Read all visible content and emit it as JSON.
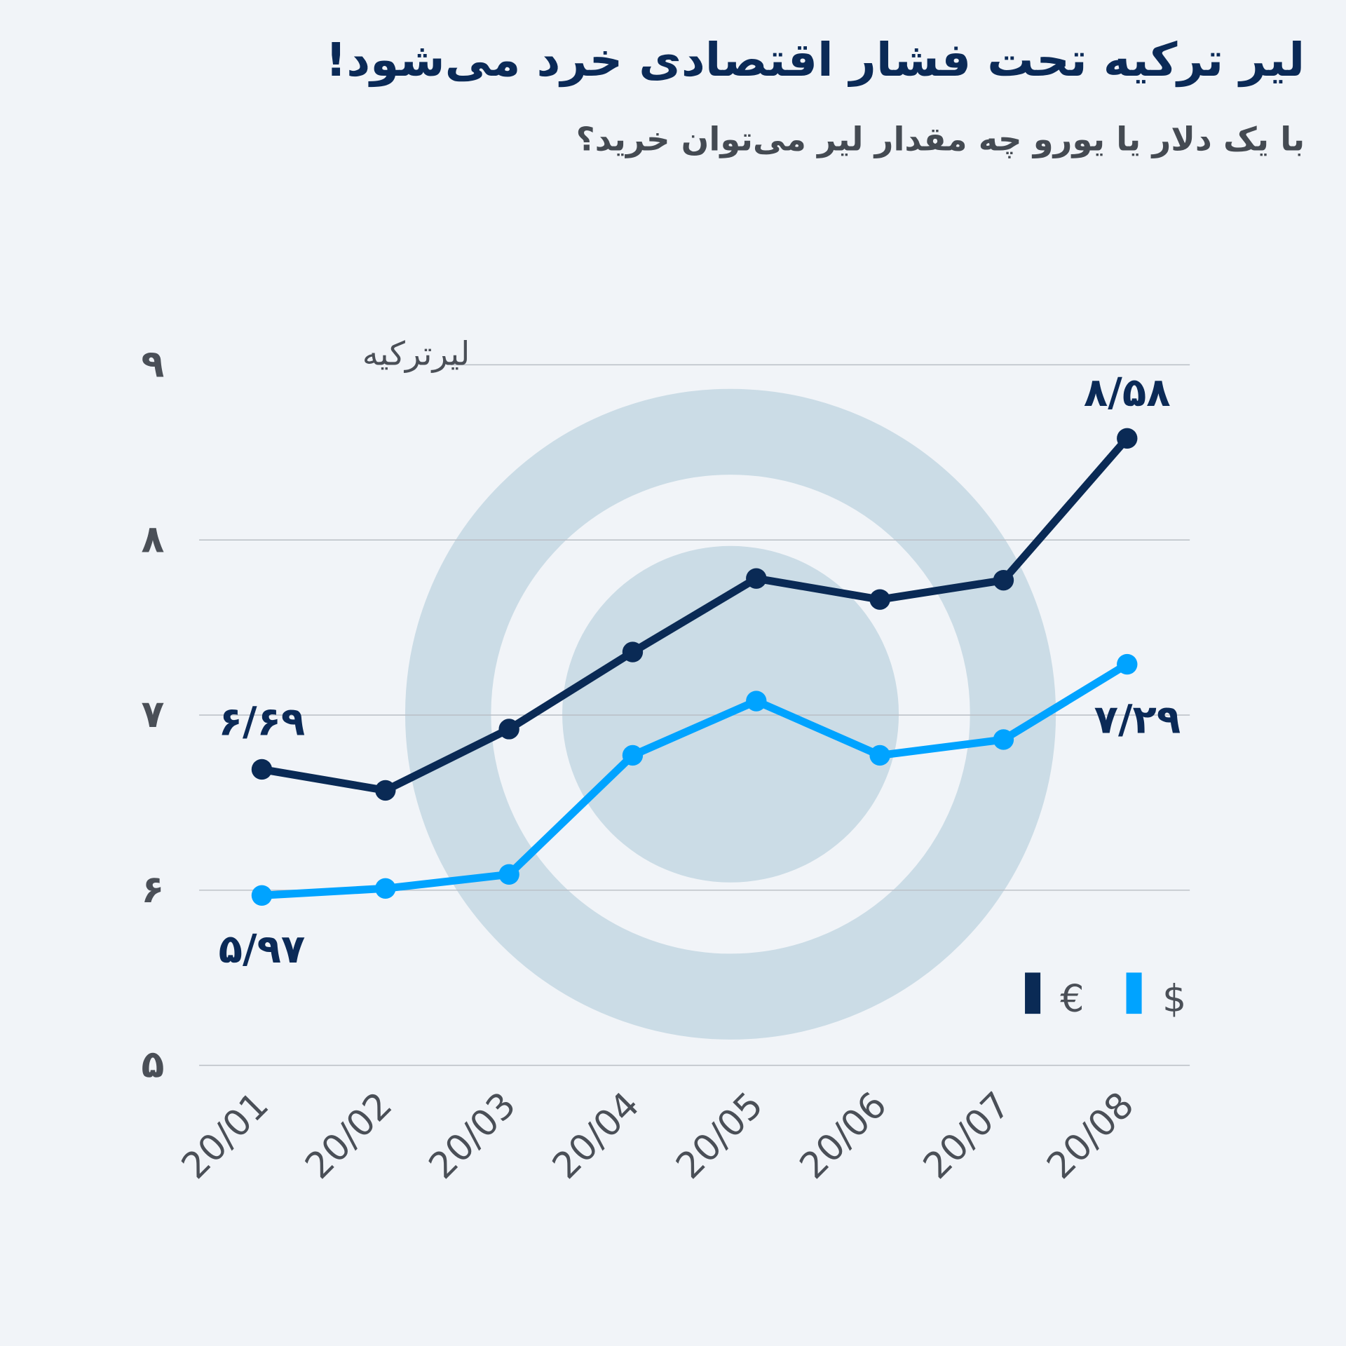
{
  "title": "لیر ترکیه تحت فشار اقتصادی خرد می‌شود!",
  "subtitle": "با یک دلار یا یورو چه مقدار لیر می‌توان خرید؟",
  "colors": {
    "euro": "#0a2a55",
    "dollar": "#00a3ff",
    "grid": "#b9bec5",
    "watermark": "#cbdce6"
  },
  "chart_data": {
    "type": "line",
    "title": "لیر ترکیه تحت فشار اقتصادی خرد می‌شود!",
    "ylabel": "لیرترکیه",
    "xlabel": "",
    "categories": [
      "20/01",
      "20/02",
      "20/03",
      "20/04",
      "20/05",
      "20/06",
      "20/07",
      "20/08"
    ],
    "ylim": [
      5,
      9
    ],
    "yticks": [
      5,
      6,
      7,
      8,
      9
    ],
    "ytick_labels": [
      "۵",
      "۶",
      "۷",
      "۸",
      "۹"
    ],
    "grid": true,
    "legend_position": "bottom-right",
    "series": [
      {
        "name": "€",
        "values": [
          6.69,
          6.57,
          6.92,
          7.36,
          7.78,
          7.66,
          7.77,
          8.58
        ]
      },
      {
        "name": "$",
        "values": [
          5.97,
          6.01,
          6.09,
          6.77,
          7.08,
          6.77,
          6.86,
          7.29
        ]
      }
    ],
    "annotations": [
      {
        "series": 0,
        "index": 0,
        "text": "۶/۶۹"
      },
      {
        "series": 0,
        "index": 7,
        "text": "۸/۵۸"
      },
      {
        "series": 1,
        "index": 0,
        "text": "۵/۹۷"
      },
      {
        "series": 1,
        "index": 7,
        "text": "۷/۲۹"
      }
    ]
  }
}
